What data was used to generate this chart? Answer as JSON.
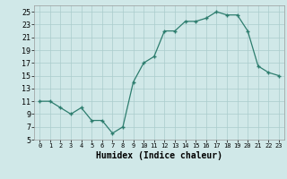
{
  "xlabel": "Humidex (Indice chaleur)",
  "ylabel": "",
  "x": [
    0,
    1,
    2,
    3,
    4,
    5,
    6,
    7,
    8,
    9,
    10,
    11,
    12,
    13,
    14,
    15,
    16,
    17,
    18,
    19,
    20,
    21,
    22,
    23
  ],
  "y": [
    11,
    11,
    10,
    9,
    10,
    8,
    8,
    6,
    7,
    14,
    17,
    18,
    22,
    22,
    23.5,
    23.5,
    24,
    25,
    24.5,
    24.5,
    22,
    16.5,
    15.5,
    15
  ],
  "line_color": "#2d7d6e",
  "marker": "+",
  "marker_size": 3,
  "bg_color": "#d0e8e8",
  "grid_color": "#aacccc",
  "ylim": [
    5,
    26
  ],
  "yticks": [
    5,
    7,
    9,
    11,
    13,
    15,
    17,
    19,
    21,
    23,
    25
  ],
  "xlim": [
    -0.5,
    23.5
  ],
  "xticks": [
    0,
    1,
    2,
    3,
    4,
    5,
    6,
    7,
    8,
    9,
    10,
    11,
    12,
    13,
    14,
    15,
    16,
    17,
    18,
    19,
    20,
    21,
    22,
    23
  ],
  "xlabel_fontsize": 7,
  "tick_fontsize_x": 5,
  "tick_fontsize_y": 6
}
